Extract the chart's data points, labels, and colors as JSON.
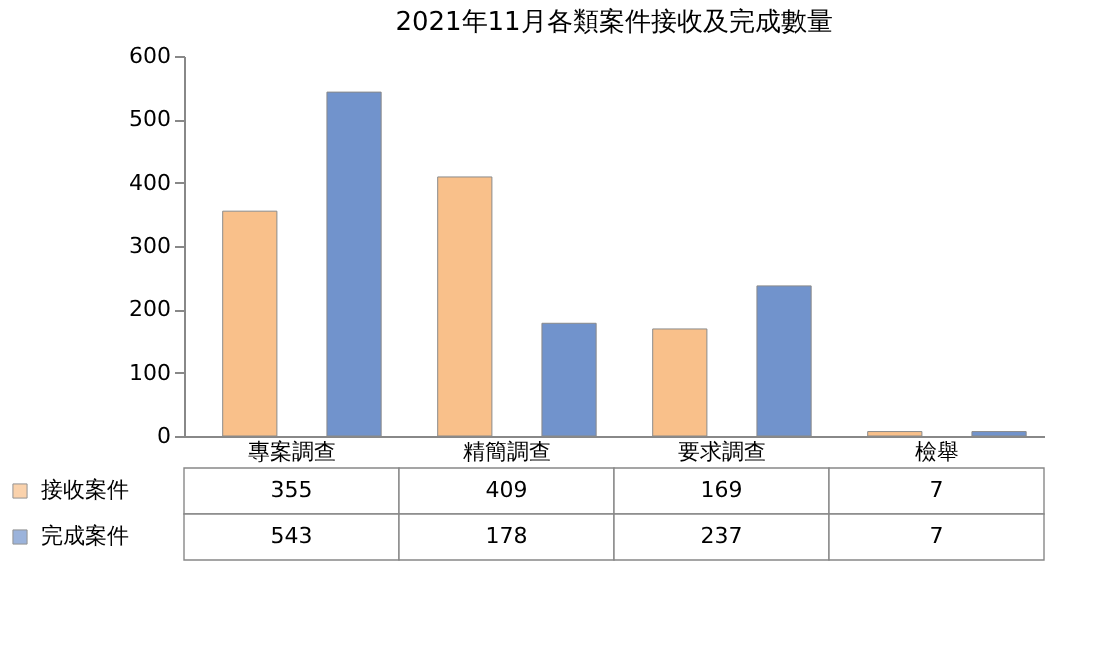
{
  "chart_data": {
    "type": "bar",
    "title": "2021年11月各類案件接收及完成數量",
    "categories": [
      "專案調查",
      "精簡調查",
      "要求調查",
      "檢舉"
    ],
    "series": [
      {
        "name": "接收案件",
        "color": "#f9c08a",
        "values": [
          355,
          409,
          169,
          7
        ]
      },
      {
        "name": "完成案件",
        "color": "#7193cc",
        "values": [
          543,
          178,
          237,
          7
        ]
      }
    ],
    "ylim": [
      0,
      600
    ],
    "yticks": [
      0,
      100,
      200,
      300,
      400,
      500,
      600
    ],
    "data_labels": true,
    "legend": "bottom"
  }
}
